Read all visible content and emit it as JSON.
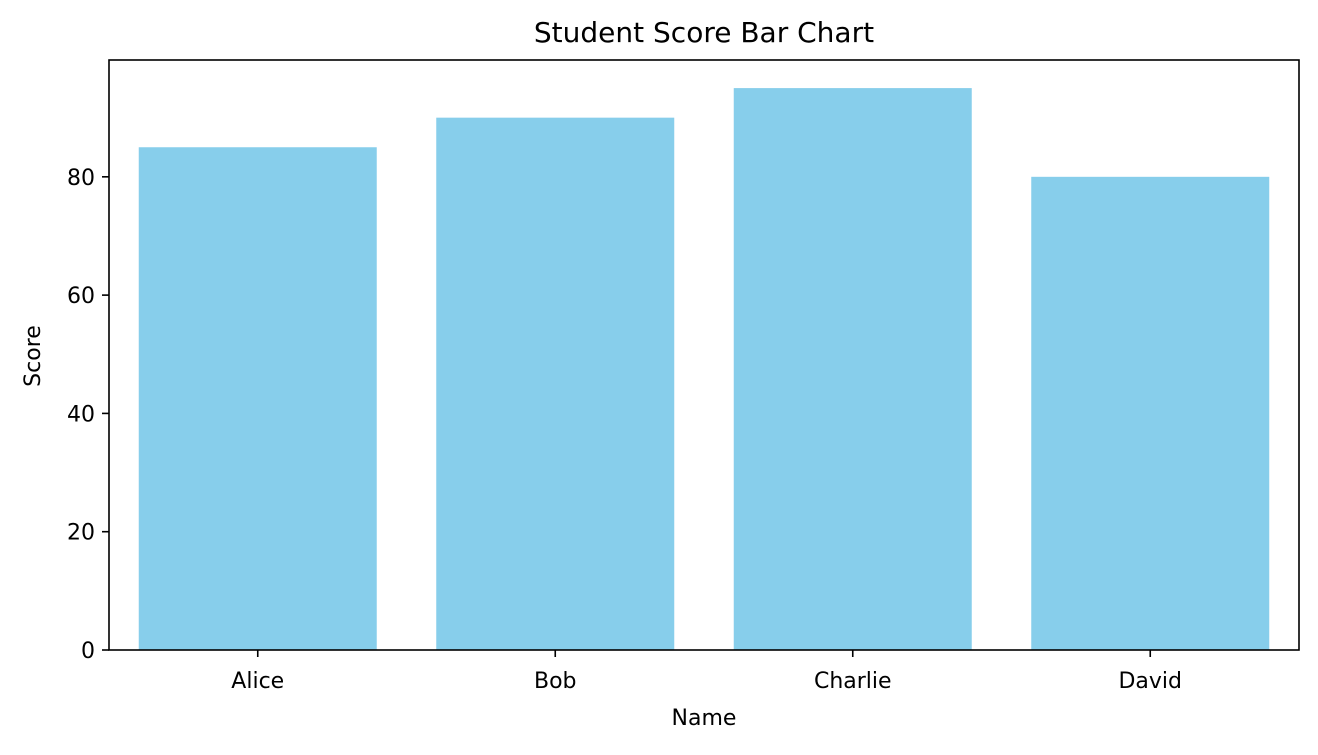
{
  "chart_data": {
    "type": "bar",
    "title": "Student Score Bar Chart",
    "xlabel": "Name",
    "ylabel": "Score",
    "categories": [
      "Alice",
      "Bob",
      "Charlie",
      "David"
    ],
    "values": [
      85,
      90,
      95,
      80
    ],
    "ylim": [
      0,
      99.75
    ],
    "yticks": [
      0,
      20,
      40,
      60,
      80
    ],
    "bar_color": "#87CEEB",
    "grid": false,
    "legend": "none"
  }
}
